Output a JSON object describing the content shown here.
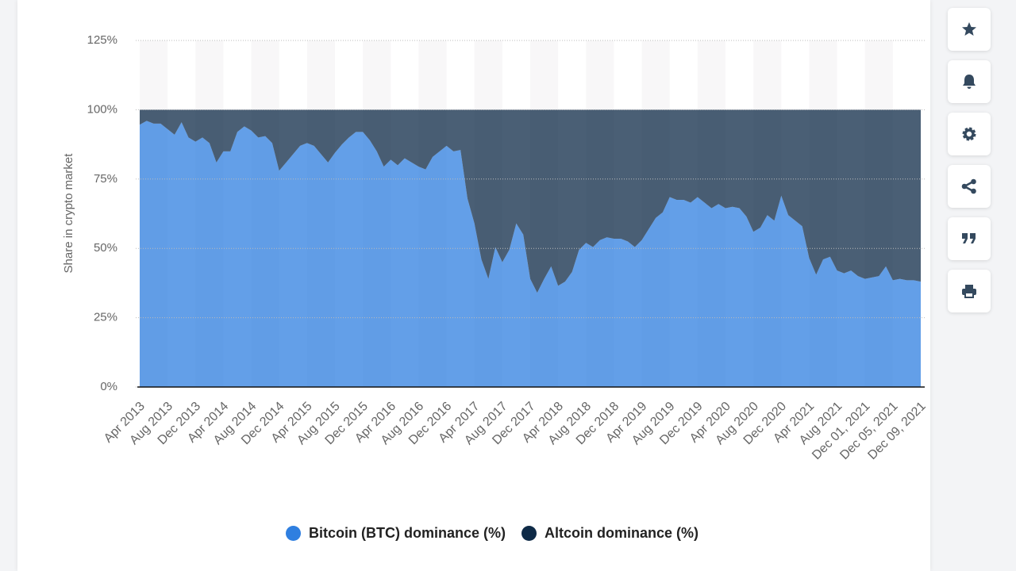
{
  "chart_data": {
    "type": "stacked-area",
    "y_label": "Share in crypto market",
    "categories": [
      "Apr 2013",
      null,
      null,
      null,
      "Aug 2013",
      null,
      null,
      null,
      "Dec 2013",
      null,
      null,
      null,
      "Apr 2014",
      null,
      null,
      null,
      "Aug 2014",
      null,
      null,
      null,
      "Dec 2014",
      null,
      null,
      null,
      "Apr 2015",
      null,
      null,
      null,
      "Aug 2015",
      null,
      null,
      null,
      "Dec 2015",
      null,
      null,
      null,
      "Apr 2016",
      null,
      null,
      null,
      "Aug 2016",
      null,
      null,
      null,
      "Dec 2016",
      null,
      null,
      null,
      "Apr 2017",
      null,
      null,
      null,
      "Aug 2017",
      null,
      null,
      null,
      "Dec 2017",
      null,
      null,
      null,
      "Apr 2018",
      null,
      null,
      null,
      "Aug 2018",
      null,
      null,
      null,
      "Dec 2018",
      null,
      null,
      null,
      "Apr 2019",
      null,
      null,
      null,
      "Aug 2019",
      null,
      null,
      null,
      "Dec 2019",
      null,
      null,
      null,
      "Apr 2020",
      null,
      null,
      null,
      "Aug 2020",
      null,
      null,
      null,
      "Dec 2020",
      null,
      null,
      null,
      "Apr 2021",
      null,
      null,
      null,
      "Aug 2021",
      null,
      null,
      null,
      "Dec 01, 2021",
      null,
      null,
      null,
      "Dec 05, 2021",
      null,
      null,
      null,
      "Dec 09, 2021"
    ],
    "series": [
      {
        "name": "Bitcoin (BTC) dominance (%)",
        "color": "#2f7fe0",
        "values": [
          94.6,
          96,
          95,
          95,
          93,
          91,
          95.5,
          90,
          88.5,
          90,
          88,
          81,
          85,
          85,
          92,
          94,
          92.5,
          90,
          90.5,
          88,
          78,
          81,
          84,
          87,
          88,
          87,
          84,
          81,
          84.5,
          87.5,
          90,
          92,
          92,
          89,
          85,
          79.5,
          82,
          80,
          82.5,
          81,
          79.5,
          78.5,
          83,
          85,
          87,
          85,
          85.5,
          68,
          59,
          46,
          39,
          50.5,
          45,
          49.5,
          59,
          55,
          39,
          34,
          39,
          43.5,
          36.5,
          38,
          41.5,
          49.5,
          52,
          50.5,
          53,
          54,
          53.5,
          53.5,
          52.5,
          50.5,
          53,
          57,
          61,
          63,
          68.5,
          67.5,
          67.5,
          66.5,
          68.5,
          66.5,
          64.5,
          66,
          64.5,
          65,
          64.5,
          61.5,
          56,
          57.5,
          62,
          60,
          69,
          62,
          60,
          58,
          46.5,
          40.5,
          46,
          47,
          42,
          41,
          42,
          40,
          39,
          39.5,
          40,
          43.5,
          38.5,
          39,
          38.5,
          38.5,
          38
        ]
      },
      {
        "name": "Altcoin dominance (%)",
        "color": "#0e2a47",
        "values": [
          5.4,
          4,
          5,
          5,
          7,
          9,
          4.5,
          10,
          11.5,
          10,
          12,
          19,
          15,
          15,
          8,
          6,
          7.5,
          10,
          9.5,
          12,
          22,
          19,
          16,
          13,
          12,
          13,
          16,
          19,
          15.5,
          12.5,
          10,
          8,
          8,
          11,
          15,
          20.5,
          18,
          20,
          17.5,
          19,
          20.5,
          21.5,
          17,
          15,
          13,
          15,
          14.5,
          32,
          41,
          54,
          61,
          49.5,
          55,
          50.5,
          41,
          45,
          61,
          66,
          61,
          56.5,
          63.5,
          62,
          58.5,
          50.5,
          48,
          49.5,
          47,
          46,
          46.5,
          46.5,
          47.5,
          49.5,
          47,
          43,
          39,
          37,
          31.5,
          32.5,
          32.5,
          33.5,
          31.5,
          33.5,
          35.5,
          34,
          35.5,
          35,
          35.5,
          38.5,
          44,
          42.5,
          38,
          40,
          31,
          38,
          40,
          42,
          53.5,
          59.5,
          54,
          53,
          58,
          59,
          58,
          60,
          61,
          60.5,
          60,
          56.5,
          61.5,
          61,
          61.5,
          61.5,
          62
        ]
      }
    ],
    "ylim": [
      0,
      125
    ],
    "yticks": [
      {
        "value": 0,
        "label": "0%"
      },
      {
        "value": 25,
        "label": "25%"
      },
      {
        "value": 50,
        "label": "50%"
      },
      {
        "value": 75,
        "label": "75%"
      },
      {
        "value": 100,
        "label": "100%"
      },
      {
        "value": 125,
        "label": "125%"
      }
    ],
    "grid": true,
    "legend": "bottom"
  }
}
